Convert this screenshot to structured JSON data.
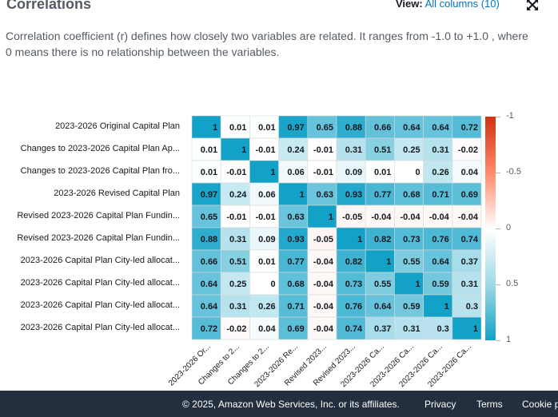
{
  "header": {
    "title": "Correlations",
    "view_label": "View:",
    "view_value": "All columns (10)"
  },
  "description": "Correlation coefficient (r) defines how closely two variables are related. It ranges from -1.0 to +1.0 , where 0 means there is no relationship between the variables.",
  "chart_data": {
    "type": "heatmap",
    "row_labels": [
      "2023-2026 Original Capital Plan",
      "Changes to 2023-2026 Capital Plan Ap...",
      "Changes to 2023-2026 Capital Plan fro...",
      "2023-2026 Revised Capital Plan",
      "Revised 2023-2026 Capital Plan Fundin...",
      "Revised 2023-2026 Capital Plan Fundin...",
      "2023-2026 Capital Plan City-led allocat...",
      "2023-2026 Capital Plan City-led allocat...",
      "2023-2026 Capital Plan City-led allocat...",
      "2023-2026 Capital Plan City-led allocat..."
    ],
    "col_labels": [
      "2023-2026 Or...",
      "Changes to 2...",
      "Changes to 2...",
      "2023-2026 Re...",
      "Revised 2023...",
      "Revised 2023...",
      "2023-2026 Ca...",
      "2023-2026 Ca...",
      "2023-2026 Ca...",
      "2023-2026 Ca..."
    ],
    "values": [
      [
        1,
        0.01,
        0.01,
        0.97,
        0.65,
        0.88,
        0.66,
        0.64,
        0.64,
        0.72
      ],
      [
        0.01,
        1,
        -0.01,
        0.24,
        -0.01,
        0.31,
        0.51,
        0.25,
        0.31,
        -0.02
      ],
      [
        0.01,
        -0.01,
        1,
        0.06,
        -0.01,
        0.09,
        0.01,
        0,
        0.26,
        0.04
      ],
      [
        0.97,
        0.24,
        0.06,
        1,
        0.63,
        0.93,
        0.77,
        0.68,
        0.71,
        0.69
      ],
      [
        0.65,
        -0.01,
        -0.01,
        0.63,
        1,
        -0.05,
        -0.04,
        -0.04,
        -0.04,
        -0.04
      ],
      [
        0.88,
        0.31,
        0.09,
        0.93,
        -0.05,
        1,
        0.82,
        0.73,
        0.76,
        0.74
      ],
      [
        0.66,
        0.51,
        0.01,
        0.77,
        -0.04,
        0.82,
        1,
        0.55,
        0.64,
        0.37
      ],
      [
        0.64,
        0.25,
        0,
        0.68,
        -0.04,
        0.73,
        0.55,
        1,
        0.59,
        0.31
      ],
      [
        0.64,
        0.31,
        0.26,
        0.71,
        -0.04,
        0.76,
        0.64,
        0.59,
        1,
        0.3
      ],
      [
        0.72,
        -0.02,
        0.04,
        0.69,
        -0.04,
        0.74,
        0.37,
        0.31,
        0.3,
        1
      ]
    ],
    "colorbar": {
      "range": [
        -1,
        1
      ],
      "ticks": [
        "-1",
        "-0.5",
        "0",
        "0.5",
        "1"
      ],
      "tick_values": [
        -1,
        -0.5,
        0,
        0.5,
        1
      ],
      "placement": "right",
      "negative_color": "#d13212",
      "neutral_color": "#ffffff",
      "positive_color": "#12a2c7"
    }
  },
  "footer": {
    "copyright": "© 2025, Amazon Web Services, Inc. or its affiliates.",
    "privacy": "Privacy",
    "terms": "Terms",
    "cookie": "Cookie p"
  }
}
